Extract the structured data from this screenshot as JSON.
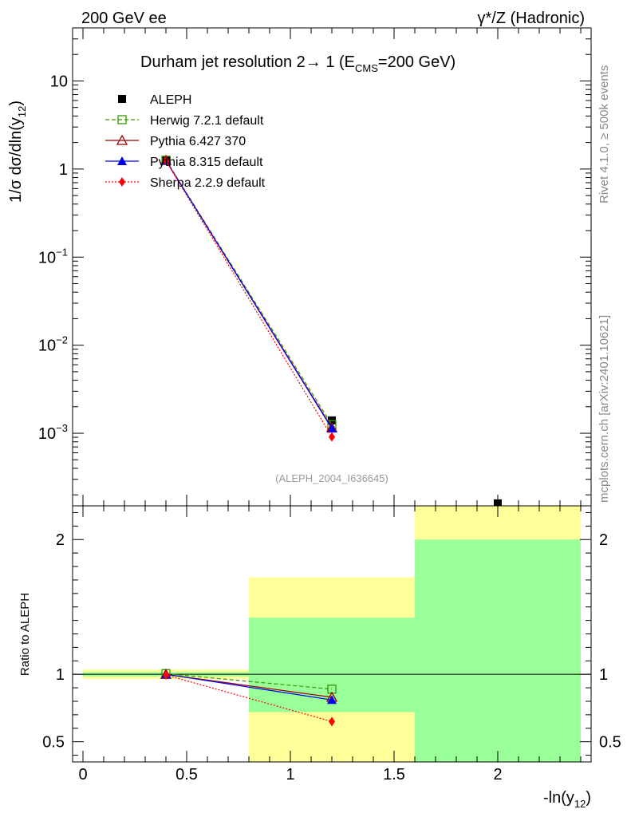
{
  "header": {
    "left": "200 GeV ee",
    "right": "γ*/Z (Hadronic)"
  },
  "side_labels": {
    "rivet": "Rivet 4.1.0, ≥ 500k events",
    "mcplots": "mcplots.cern.ch [arXiv:2401.10621]"
  },
  "watermark": "(ALEPH_2004_I636645)",
  "chart_data": [
    {
      "panel": "main",
      "type": "line",
      "title": "Durham jet resolution 2→ 1 (E_CMS=200 GeV)",
      "title_parts": {
        "prefix": "Durham jet resolution 2",
        "arrow": "→",
        "mid": " 1 (E",
        "sub": "CMS",
        "suffix": "=200 GeV)"
      },
      "ylabel_parts": {
        "main": "1/σ  dσ/dln(y",
        "sub": "12",
        "close": ")"
      },
      "yscale": "log",
      "ylim": [
        0.00015,
        40
      ],
      "xlim": [
        -0.05,
        2.45
      ],
      "yticks": [
        {
          "value": 10,
          "base": "10",
          "exp": ""
        },
        {
          "value": 1,
          "base": "1",
          "exp": ""
        },
        {
          "value": 0.1,
          "base": "10",
          "exp": "−1"
        },
        {
          "value": 0.01,
          "base": "10",
          "exp": "−2"
        },
        {
          "value": 0.001,
          "base": "10",
          "exp": "−3"
        }
      ],
      "legend_position": "top-left",
      "series": [
        {
          "name": "ALEPH",
          "color": "#000000",
          "marker": "square",
          "style": "none",
          "x": [
            0.4,
            1.2,
            2.0
          ],
          "y": [
            1.25,
            0.0014,
            0.00016
          ]
        },
        {
          "name": "Herwig 7.2.1 default",
          "color": "#339900",
          "marker": "open-square",
          "style": "dashed",
          "x": [
            0.4,
            1.2
          ],
          "y": [
            1.26,
            0.00125
          ]
        },
        {
          "name": "Pythia 6.427 370",
          "color": "#990000",
          "marker": "open-triangle",
          "style": "solid",
          "x": [
            0.4,
            1.2
          ],
          "y": [
            1.25,
            0.00116
          ]
        },
        {
          "name": "Pythia 8.315 default",
          "color": "#0000ee",
          "marker": "triangle",
          "style": "solid",
          "x": [
            0.4,
            1.2
          ],
          "y": [
            1.25,
            0.00113
          ]
        },
        {
          "name": "Sherpa 2.2.9 default",
          "color": "#ff0000",
          "marker": "diamond",
          "style": "dotted",
          "x": [
            0.4,
            1.2
          ],
          "y": [
            1.24,
            0.00091
          ]
        }
      ]
    },
    {
      "panel": "ratio",
      "type": "line",
      "ylabel": "Ratio to ALEPH",
      "xlabel_parts": {
        "main": "-ln(y",
        "sub": "12",
        "close": ")"
      },
      "xlim": [
        -0.05,
        2.45
      ],
      "ylim": [
        0.35,
        2.25
      ],
      "xticks": [
        {
          "value": 0,
          "label": "0"
        },
        {
          "value": 0.5,
          "label": "0.5"
        },
        {
          "value": 1,
          "label": "1"
        },
        {
          "value": 1.5,
          "label": "1.5"
        },
        {
          "value": 2,
          "label": "2"
        }
      ],
      "yticks": [
        {
          "value": 2,
          "label": "2"
        },
        {
          "value": 1,
          "label": "1"
        },
        {
          "value": 0.5,
          "label": "0.5"
        }
      ],
      "reference_line": 1.0,
      "uncertainty_bands": [
        {
          "x": [
            0,
            0.8
          ],
          "stat": [
            0.985,
            1.015
          ],
          "total": [
            0.965,
            1.035
          ]
        },
        {
          "x": [
            0.8,
            1.6
          ],
          "stat": [
            0.72,
            1.42
          ],
          "total": [
            0.35,
            1.72
          ]
        },
        {
          "x": [
            1.6,
            2.4
          ],
          "stat": [
            0.35,
            2.0
          ],
          "total": [
            0.35,
            2.25
          ]
        }
      ],
      "series": [
        {
          "name": "Herwig 7.2.1 default",
          "color": "#339900",
          "marker": "open-square",
          "style": "dashed",
          "x": [
            0.4,
            1.2
          ],
          "y": [
            1.005,
            0.89
          ]
        },
        {
          "name": "Pythia 6.427 370",
          "color": "#990000",
          "marker": "open-triangle",
          "style": "solid",
          "x": [
            0.4,
            1.2
          ],
          "y": [
            1.0,
            0.83
          ]
        },
        {
          "name": "Pythia 8.315 default",
          "color": "#0000ee",
          "marker": "triangle",
          "style": "solid",
          "x": [
            0.4,
            1.2
          ],
          "y": [
            1.0,
            0.81
          ]
        },
        {
          "name": "Sherpa 2.2.9 default",
          "color": "#ff0000",
          "marker": "diamond",
          "style": "dotted",
          "x": [
            0.4,
            1.2
          ],
          "y": [
            0.995,
            0.65
          ]
        }
      ]
    }
  ]
}
